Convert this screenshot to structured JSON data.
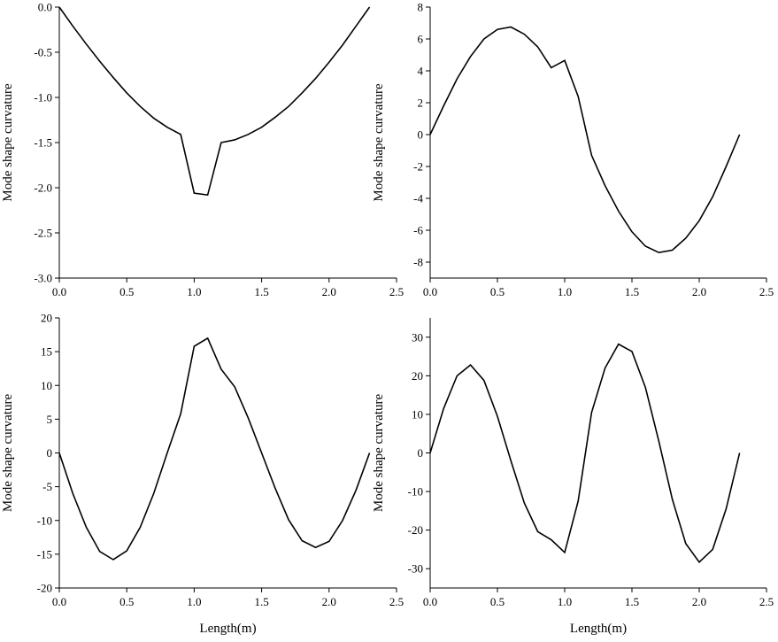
{
  "chart_data": [
    {
      "type": "line",
      "ylabel": "Mode shape curvature",
      "xlabel": "",
      "xlim": [
        0,
        2.5
      ],
      "ylim": [
        -3.0,
        0.0
      ],
      "xticks": [
        "0.0",
        "0.5",
        "1.0",
        "1.5",
        "2.0",
        "2.5"
      ],
      "yticks": [
        "0.0",
        "-0.5",
        "-1.0",
        "-1.5",
        "-2.0",
        "-2.5",
        "-3.0"
      ],
      "series": [
        {
          "x": [
            0,
            0.1,
            0.2,
            0.3,
            0.4,
            0.5,
            0.6,
            0.7,
            0.8,
            0.9,
            1.0,
            1.1,
            1.2,
            1.3,
            1.4,
            1.5,
            1.6,
            1.7,
            1.8,
            1.9,
            2.0,
            2.1,
            2.2,
            2.3
          ],
          "y": [
            0,
            -0.21,
            -0.41,
            -0.6,
            -0.78,
            -0.95,
            -1.1,
            -1.23,
            -1.33,
            -1.41,
            -2.06,
            -2.08,
            -1.5,
            -1.47,
            -1.41,
            -1.33,
            -1.22,
            -1.1,
            -0.95,
            -0.79,
            -0.61,
            -0.42,
            -0.21,
            0
          ]
        }
      ]
    },
    {
      "type": "line",
      "ylabel": "Mode shape curvature",
      "xlabel": "",
      "xlim": [
        0,
        2.5
      ],
      "ylim": [
        -9,
        8
      ],
      "xticks": [
        "0.0",
        "0.5",
        "1.0",
        "1.5",
        "2.0",
        "2.5"
      ],
      "yticks": [
        "8",
        "6",
        "4",
        "2",
        "0",
        "-2",
        "-4",
        "-6",
        "-8"
      ],
      "series": [
        {
          "x": [
            0,
            0.1,
            0.2,
            0.3,
            0.4,
            0.5,
            0.6,
            0.7,
            0.8,
            0.9,
            1.0,
            1.1,
            1.2,
            1.3,
            1.4,
            1.5,
            1.6,
            1.7,
            1.8,
            1.9,
            2.0,
            2.1,
            2.2,
            2.3
          ],
          "y": [
            0,
            1.8,
            3.5,
            4.9,
            6.0,
            6.6,
            6.75,
            6.3,
            5.5,
            4.2,
            4.65,
            2.4,
            -1.3,
            -3.2,
            -4.8,
            -6.1,
            -7.0,
            -7.4,
            -7.25,
            -6.5,
            -5.4,
            -3.9,
            -2.0,
            0
          ]
        }
      ]
    },
    {
      "type": "line",
      "ylabel": "Mode shape curvature",
      "xlabel": "Length(m)",
      "xlim": [
        0,
        2.5
      ],
      "ylim": [
        -20,
        20
      ],
      "xticks": [
        "0.0",
        "0.5",
        "1.0",
        "1.5",
        "2.0",
        "2.5"
      ],
      "yticks": [
        "20",
        "15",
        "10",
        "5",
        "0",
        "-5",
        "-10",
        "-15",
        "-20"
      ],
      "series": [
        {
          "x": [
            0,
            0.1,
            0.2,
            0.3,
            0.4,
            0.5,
            0.6,
            0.7,
            0.8,
            0.9,
            1.0,
            1.1,
            1.2,
            1.3,
            1.4,
            1.5,
            1.6,
            1.7,
            1.8,
            1.9,
            2.0,
            2.1,
            2.2,
            2.3
          ],
          "y": [
            0,
            -6.0,
            -11.0,
            -14.6,
            -15.8,
            -14.5,
            -11.0,
            -6.0,
            0,
            5.8,
            15.8,
            17.0,
            12.4,
            9.8,
            5.2,
            0,
            -5.2,
            -9.9,
            -13.0,
            -14.0,
            -13.1,
            -10.0,
            -5.5,
            0
          ]
        }
      ]
    },
    {
      "type": "line",
      "ylabel": "Mode shape curvature",
      "xlabel": "Length(m)",
      "xlim": [
        0,
        2.5
      ],
      "ylim": [
        -35,
        35
      ],
      "xticks": [
        "0.0",
        "0.5",
        "1.0",
        "1.5",
        "2.0",
        "2.5"
      ],
      "yticks": [
        "30",
        "20",
        "10",
        "0",
        "-10",
        "-20",
        "-30"
      ],
      "series": [
        {
          "x": [
            0,
            0.1,
            0.2,
            0.3,
            0.4,
            0.5,
            0.6,
            0.7,
            0.8,
            0.9,
            1.0,
            1.1,
            1.2,
            1.3,
            1.4,
            1.5,
            1.6,
            1.7,
            1.8,
            1.9,
            2.0,
            2.1,
            2.2,
            2.3
          ],
          "y": [
            0,
            11.5,
            20.0,
            22.8,
            18.8,
            9.5,
            -2.0,
            -13.0,
            -20.4,
            -22.5,
            -25.8,
            -12.5,
            10.5,
            22.0,
            28.2,
            26.3,
            17.0,
            3.0,
            -12.0,
            -23.5,
            -28.3,
            -25.0,
            -14.5,
            0
          ]
        }
      ]
    }
  ]
}
